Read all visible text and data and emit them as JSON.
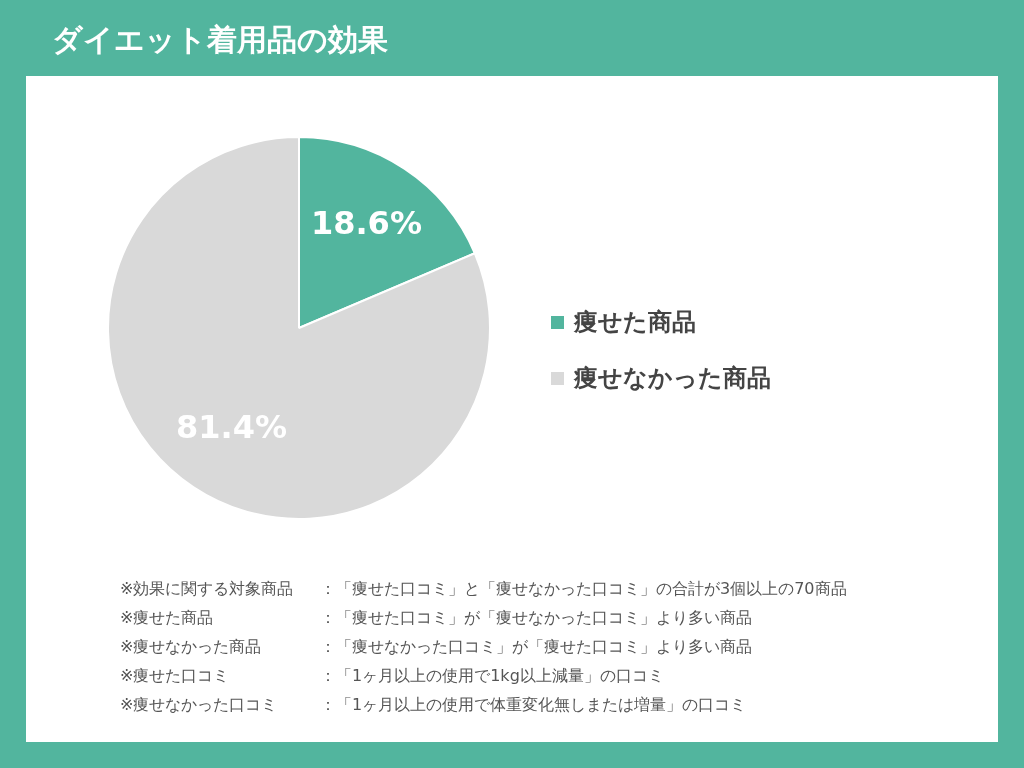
{
  "chart_data": {
    "type": "pie",
    "title": "ダイエット着用品の効果",
    "categories": [
      "痩せた商品",
      "痩せなかった商品"
    ],
    "values": [
      18.6,
      81.4
    ],
    "colors": [
      "#52b59e",
      "#d9d9d9"
    ],
    "value_labels": [
      "18.6%",
      "81.4%"
    ],
    "legend": "right",
    "annotations": [
      "※効果に関する対象商品：「痩せた口コミ」と「痩せなかった口コミ」の合計が3個以上の70商品",
      "※痩せた商品：「痩せた口コミ」が「痩せなかった口コミ」より多い商品",
      "※痩せなかった商品：「痩せなかった口コミ」が「痩せた口コミ」より多い商品",
      "※痩せた口コミ：「1ヶ月以上の使用で1kg以上減量」の口コミ",
      "※痩せなかった口コミ：「1ヶ月以上の使用で体重変化無しまたは増量」の口コミ"
    ]
  }
}
